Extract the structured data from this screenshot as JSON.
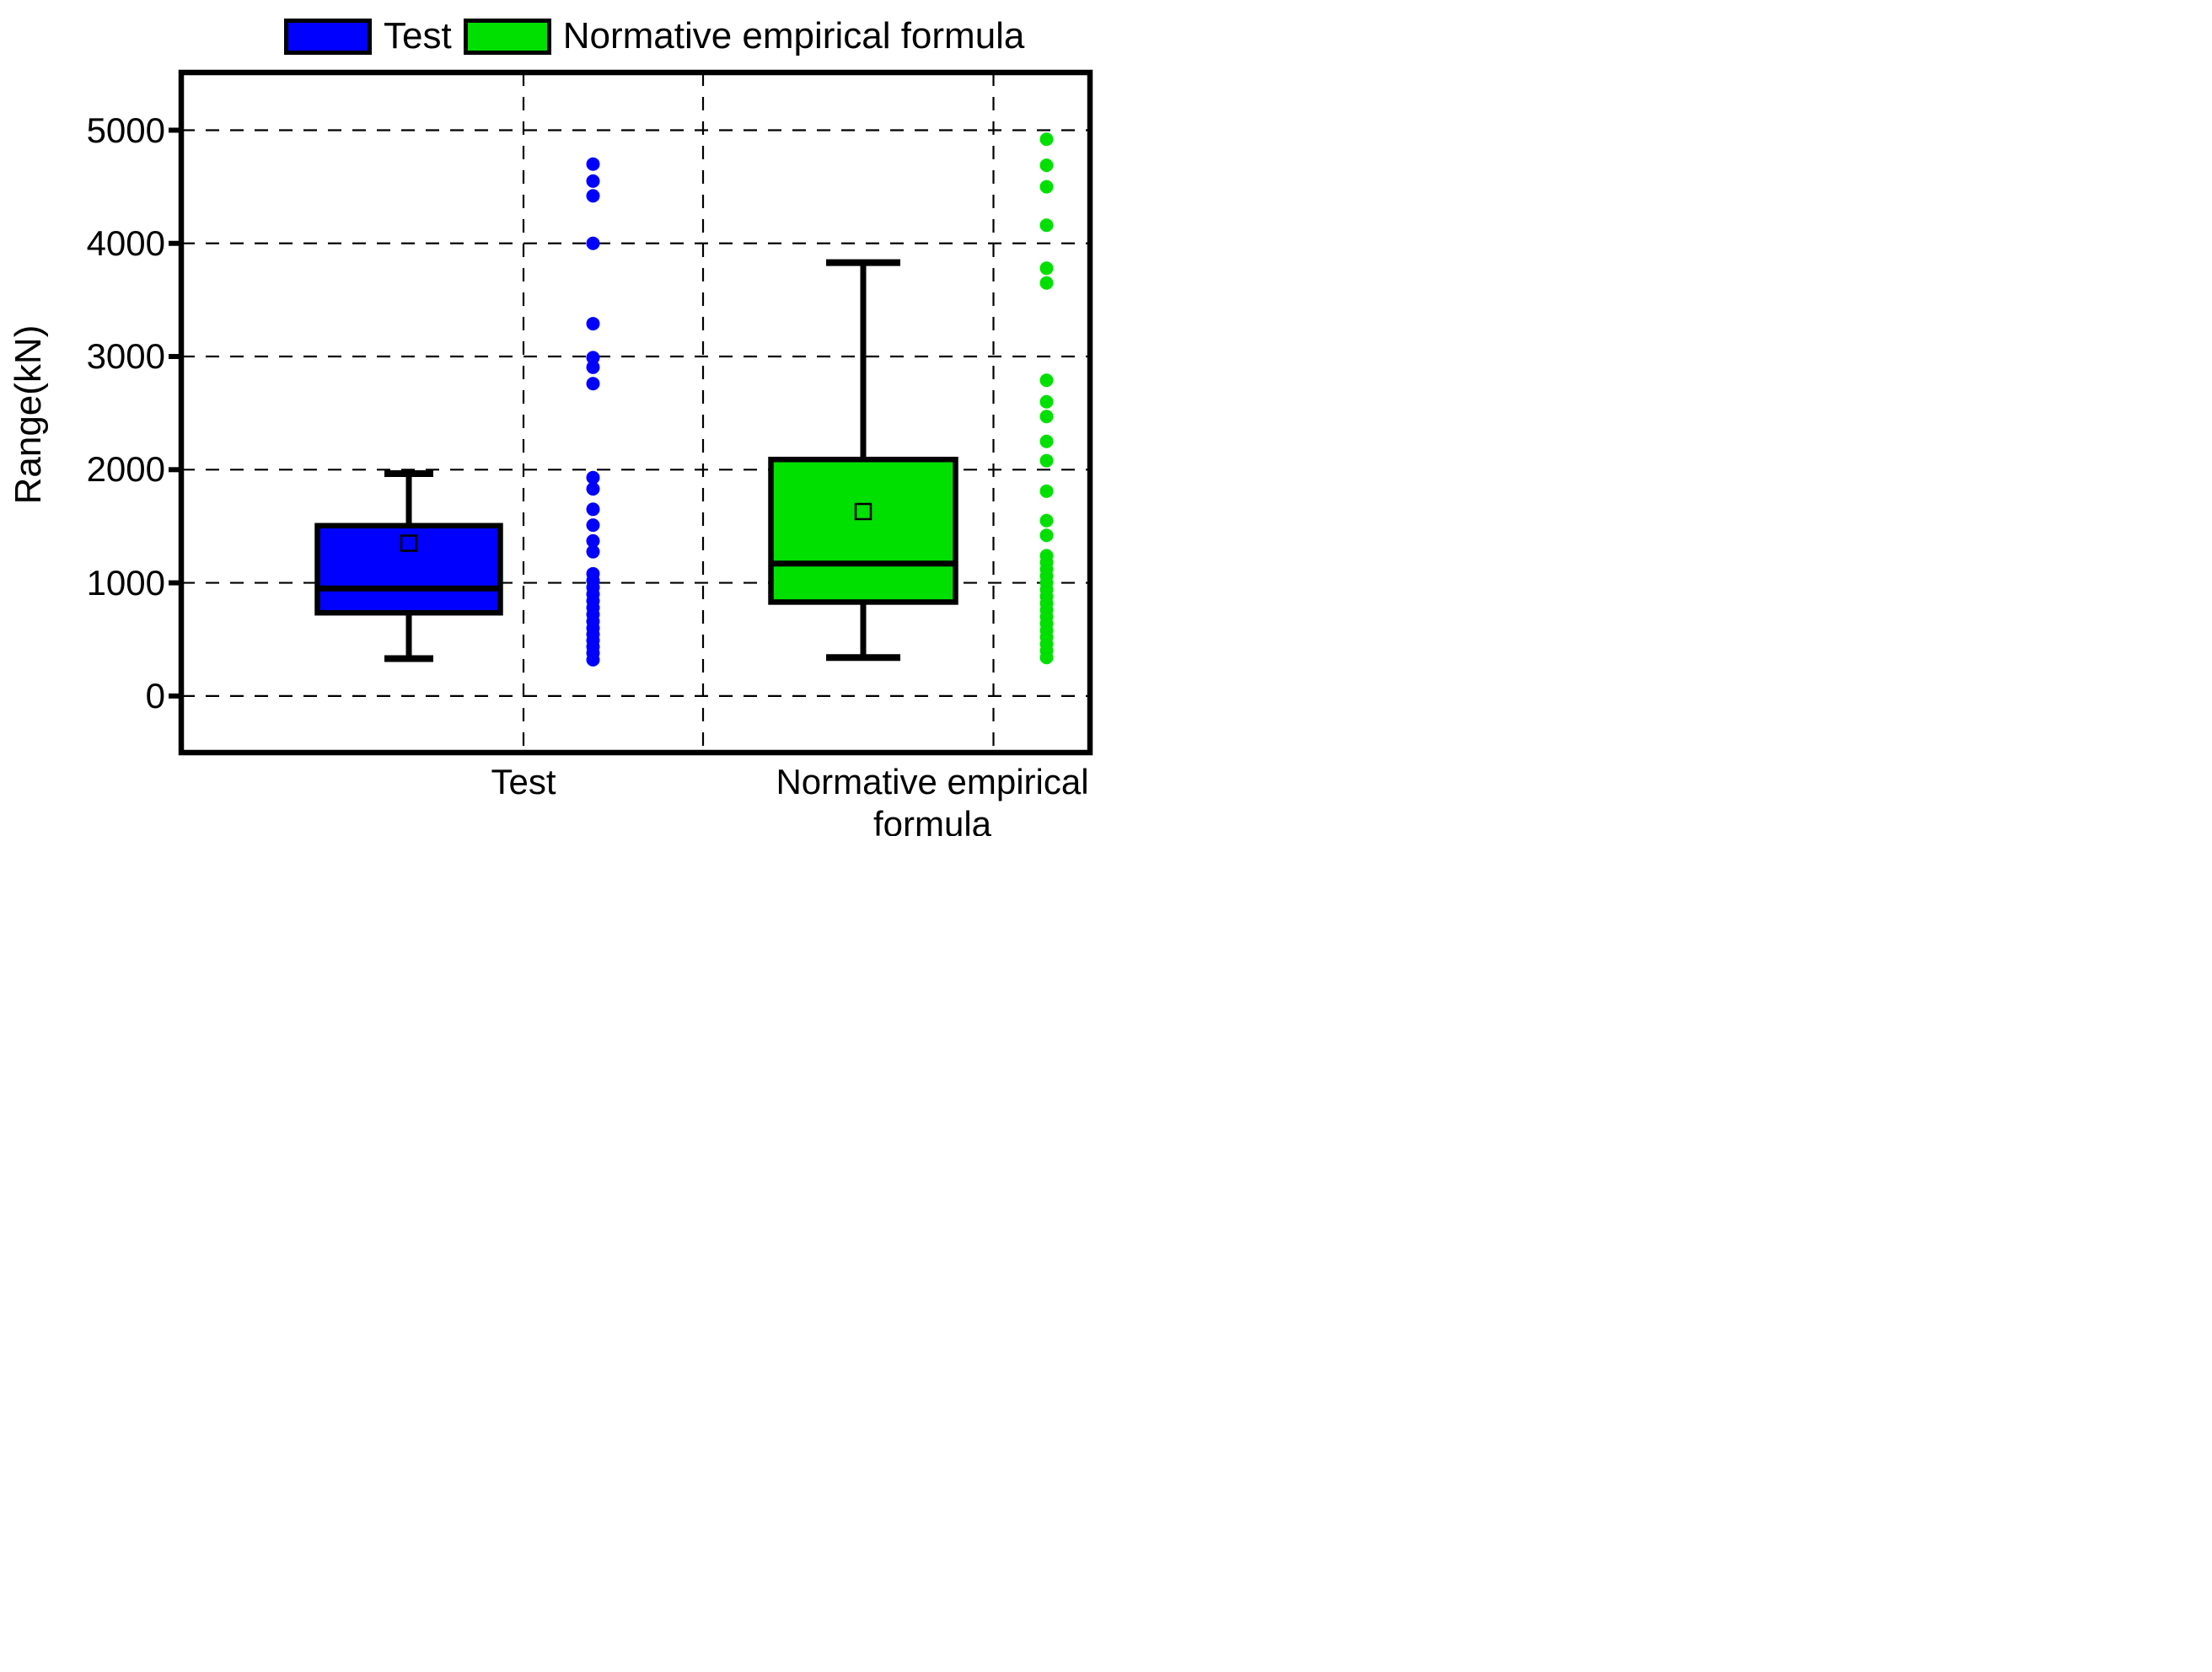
{
  "figure": {
    "y_axis_title": "Range(kN)"
  },
  "legend": {
    "items": [
      {
        "label": "Test",
        "color": "#0000FF"
      },
      {
        "label": "Normative empirical formula",
        "color": "#00E000"
      }
    ]
  },
  "chart_data": {
    "type": "box",
    "title": "",
    "xlabel": "",
    "ylabel": "Range(kN)",
    "ylim": [
      -500,
      5510
    ],
    "grid": "dashed",
    "legend_position": "top",
    "yticks": [
      5000,
      4000,
      3000,
      2000,
      1000,
      0
    ],
    "ytick_labels": [
      "5000",
      "4000",
      "3000",
      "2000",
      "1000",
      "0"
    ],
    "categories": [
      "Test",
      "Normative empirical formula"
    ],
    "series": [
      {
        "name": "Test",
        "color": "#0000FF",
        "box": {
          "min": 330,
          "q1": 735,
          "median": 950,
          "mean": 1350,
          "q3": 1505,
          "max": 1965
        },
        "points": [
          4700,
          4550,
          4420,
          4000,
          3290,
          2990,
          2905,
          2760,
          1930,
          1830,
          1650,
          1510,
          1370,
          1275,
          1080,
          1020,
          960,
          900,
          840,
          780,
          720,
          660,
          600,
          545,
          490,
          435,
          380,
          320
        ]
      },
      {
        "name": "Normative empirical formula",
        "color": "#00E000",
        "box": {
          "min": 340,
          "q1": 830,
          "median": 1170,
          "mean": 1630,
          "q3": 2090,
          "max": 3830
        },
        "points": [
          4920,
          4690,
          4500,
          4160,
          3780,
          3650,
          2790,
          2600,
          2470,
          2250,
          2080,
          1810,
          1550,
          1420,
          1240,
          1180,
          1120,
          1060,
          1000,
          940,
          880,
          820,
          760,
          700,
          640,
          580,
          520,
          460,
          400,
          340
        ]
      }
    ]
  }
}
